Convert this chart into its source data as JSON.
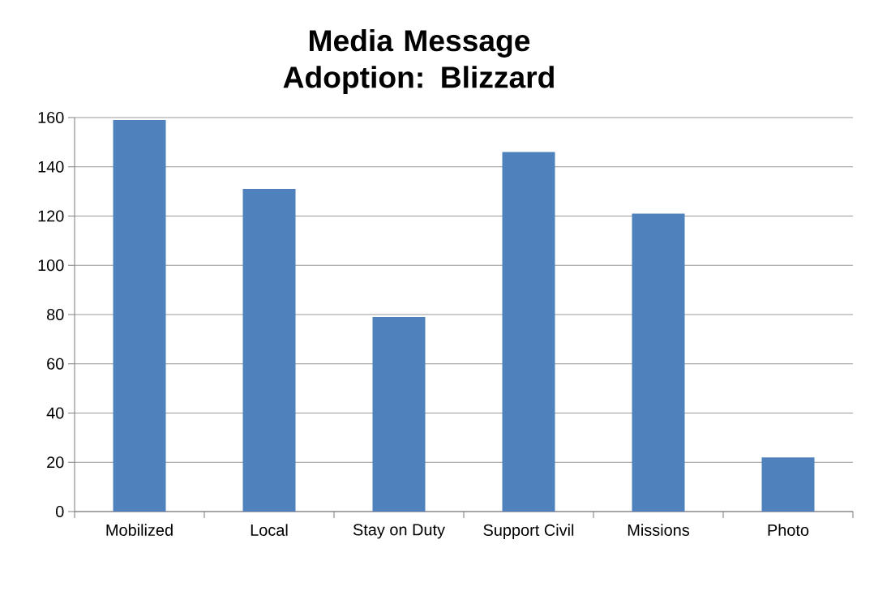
{
  "chart_data": {
    "type": "bar",
    "title": "Media Message Adoption: Blizzard",
    "categories": [
      "Mobilized",
      "Local",
      "Stay on Duty",
      "Support Civil",
      "Missions",
      "Photo"
    ],
    "values": [
      159,
      131,
      79,
      146,
      121,
      22
    ],
    "color": "#4f81bd",
    "ylim": [
      0,
      160
    ],
    "yticks": [
      0,
      20,
      40,
      60,
      80,
      100,
      120,
      140,
      160
    ],
    "grid": "y"
  }
}
